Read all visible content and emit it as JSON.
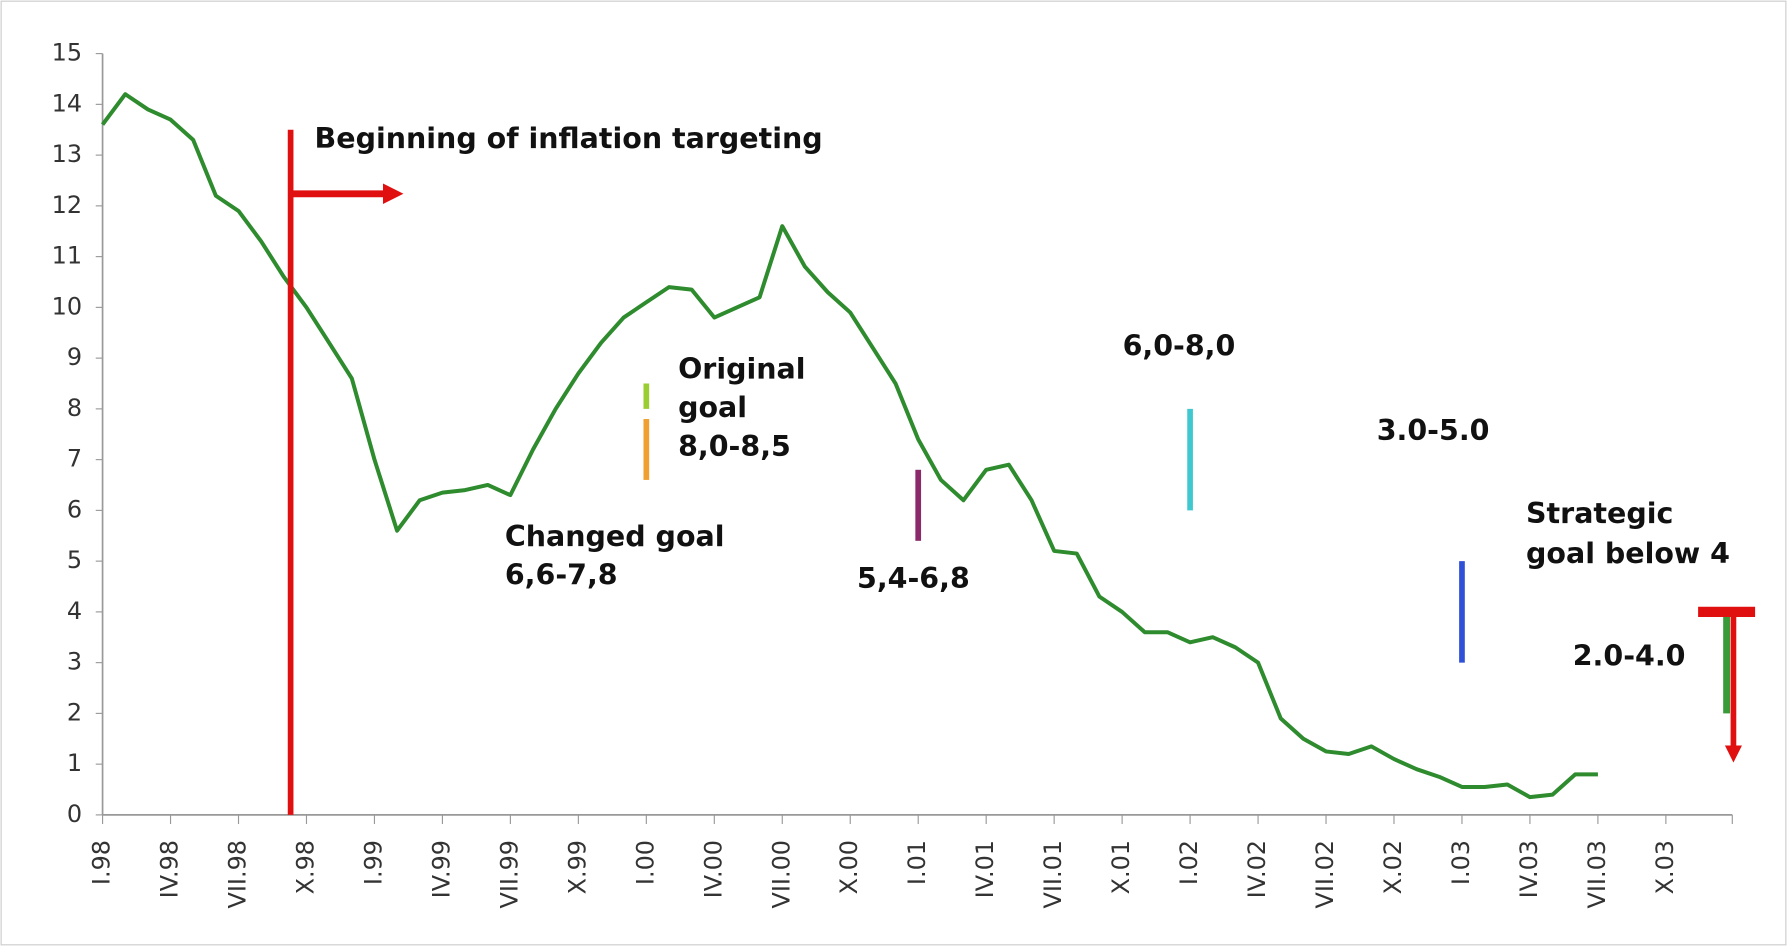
{
  "chart_data": {
    "type": "line",
    "categories": [
      "I.98",
      null,
      null,
      "IV.98",
      null,
      null,
      "VII.98",
      null,
      null,
      "X.98",
      null,
      null,
      "I.99",
      null,
      null,
      "IV.99",
      null,
      null,
      "VII.99",
      null,
      null,
      "X.99",
      null,
      null,
      "I.00",
      null,
      null,
      "IV.00",
      null,
      null,
      "VII.00",
      null,
      null,
      "X.00",
      null,
      null,
      "I.01",
      null,
      null,
      "IV.01",
      null,
      null,
      "VII.01",
      null,
      null,
      "X.01",
      null,
      null,
      "I.02",
      null,
      null,
      "IV.02",
      null,
      null,
      "VII.02",
      null,
      null,
      "X.02",
      null,
      null,
      "I.03",
      null,
      null,
      "IV.03",
      null,
      null,
      "VII.03",
      null,
      null,
      "X.03",
      null,
      null
    ],
    "series": [
      {
        "color": "#2e8b2e",
        "values": [
          13.6,
          14.2,
          13.9,
          13.7,
          13.3,
          12.2,
          11.9,
          11.3,
          10.6,
          10.0,
          9.3,
          8.6,
          7.0,
          5.6,
          6.2,
          6.35,
          6.4,
          6.5,
          6.3,
          7.2,
          8.0,
          8.7,
          9.3,
          9.8,
          10.1,
          10.4,
          10.35,
          9.8,
          10.0,
          10.2,
          11.6,
          10.8,
          10.3,
          9.9,
          9.2,
          8.5,
          7.4,
          6.6,
          6.2,
          6.8,
          6.9,
          6.2,
          5.2,
          5.15,
          4.3,
          4.0,
          3.6,
          3.6,
          3.4,
          3.5,
          3.3,
          3.0,
          1.9,
          1.5,
          1.25,
          1.2,
          1.35,
          1.1,
          0.9,
          0.75,
          0.55,
          0.55,
          0.6,
          0.35,
          0.4,
          0.8,
          0.8,
          null,
          null,
          null,
          null,
          null
        ]
      }
    ],
    "ylim": [
      0,
      15
    ],
    "yticks": [
      0,
      1,
      2,
      3,
      4,
      5,
      6,
      7,
      8,
      9,
      10,
      11,
      12,
      13,
      14,
      15
    ],
    "start_annotation": "Beginning of inflation targeting",
    "targets": [
      {
        "label": [
          "Original",
          "goal",
          "8,0-8,5"
        ],
        "low": 8.0,
        "high": 8.5,
        "color": "#9acd32",
        "x": "I.00"
      },
      {
        "label": [
          "Changed goal",
          "6,6-7,8"
        ],
        "low": 6.6,
        "high": 7.8,
        "color": "#f0a030",
        "x": "I.00"
      },
      {
        "label": [
          "5,4-6,8"
        ],
        "low": 5.4,
        "high": 6.8,
        "color": "#8b2a6b",
        "x": "I.01"
      },
      {
        "label": [
          "6,0-8,0"
        ],
        "low": 6.0,
        "high": 8.0,
        "color": "#40c8d0",
        "x": "I.02"
      },
      {
        "label": [
          "3.0-5.0"
        ],
        "low": 3.0,
        "high": 5.0,
        "color": "#3050d8",
        "x": "I.03"
      },
      {
        "label": [
          "2.0-4.0"
        ],
        "low": 2.0,
        "high": 4.0,
        "color": "#3a9a3a"
      }
    ],
    "strategic_goal": [
      "Strategic",
      "goal below 4"
    ]
  }
}
